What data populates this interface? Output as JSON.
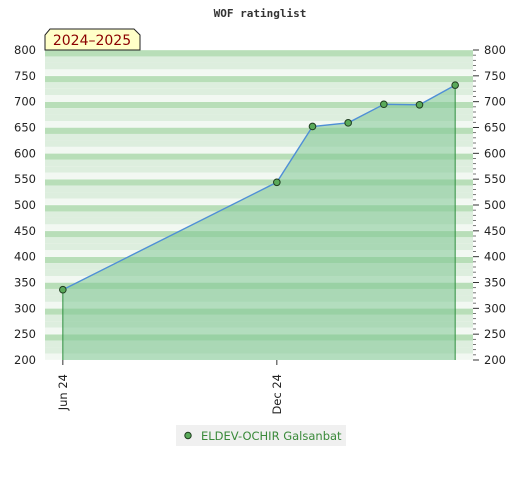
{
  "chart_data": {
    "type": "area",
    "title": "WOF ratinglist",
    "season_label": "2024–2025",
    "xlabel": "",
    "ylabel": "",
    "ylim": [
      200,
      800
    ],
    "y_ticks": [
      200,
      250,
      300,
      350,
      400,
      450,
      500,
      550,
      600,
      650,
      700,
      750,
      800
    ],
    "x_ticks": [
      {
        "label": "Jun 24",
        "x": 0
      },
      {
        "label": "Dec 24",
        "x": 6
      }
    ],
    "xlim": [
      -0.5,
      11.5
    ],
    "series": [
      {
        "name": "ELDEV-OCHIR Galsanbat",
        "x": [
          0,
          6,
          7,
          8,
          9,
          10,
          11
        ],
        "values": [
          336,
          544,
          652,
          659,
          695,
          694,
          732
        ]
      }
    ],
    "grid": true,
    "legend": "bottom-center"
  },
  "colors": {
    "line": "#4f8fd6",
    "marker": "#5aaa5a",
    "marker_edge": "#1f3d1f",
    "area_fill": "#7fc693",
    "drop_line": "#2f8f3f",
    "band_light": "#f2f8f2",
    "band_mid": "#ddeede",
    "band_dark": "#b8deb8",
    "season_bg": "#ffffc8",
    "season_text": "#8b0000",
    "legend_bg": "#f0f0f0",
    "legend_text": "#3a8a3a"
  }
}
